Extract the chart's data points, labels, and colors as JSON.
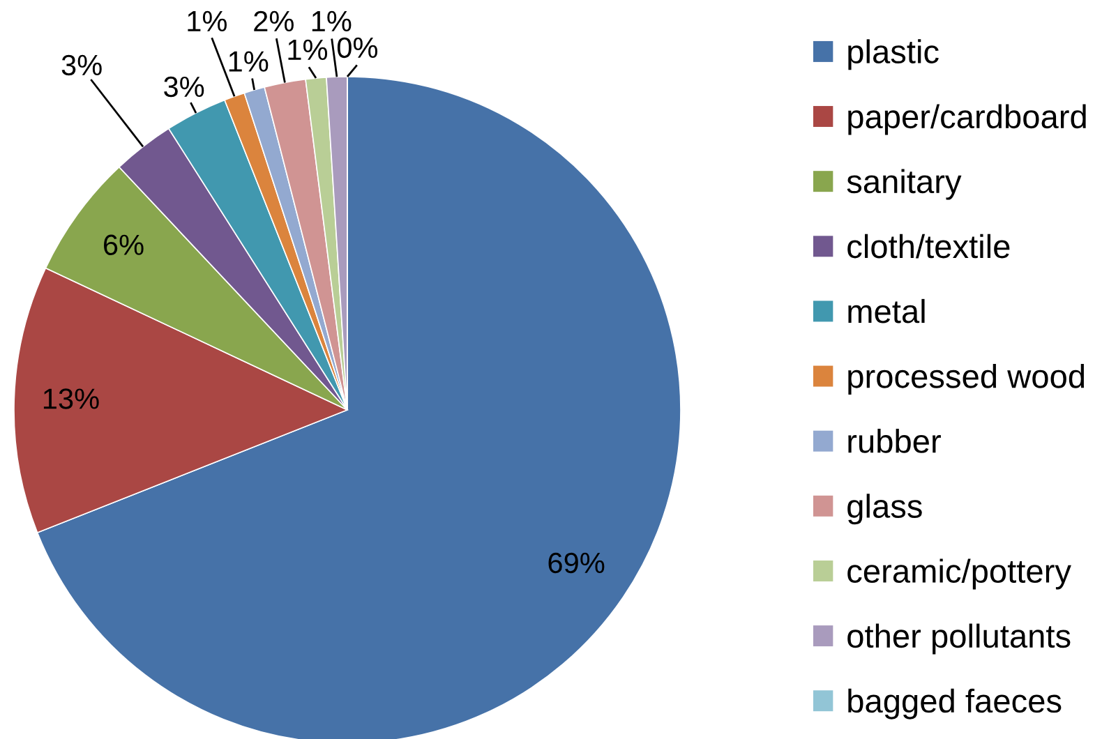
{
  "chart_data": {
    "type": "pie",
    "categories": [
      "plastic",
      "paper/cardboard",
      "sanitary",
      "cloth/textile",
      "metal",
      "processed wood",
      "rubber",
      "glass",
      "ceramic/pottery",
      "other pollutants",
      "bagged faeces"
    ],
    "values": [
      69,
      13,
      6,
      3,
      3,
      1,
      1,
      2,
      1,
      1,
      0
    ],
    "colors": [
      "#4672a8",
      "#aa4744",
      "#89a64e",
      "#71588f",
      "#4198af",
      "#db843d",
      "#93a9d0",
      "#d09493",
      "#b9ce96",
      "#a99bbd",
      "#92c5d6"
    ],
    "value_labels": [
      "69%",
      "13%",
      "6%",
      "3%",
      "3%",
      "1%",
      "1%",
      "2%",
      "1%",
      "1%",
      "0%"
    ],
    "legend": "right"
  }
}
